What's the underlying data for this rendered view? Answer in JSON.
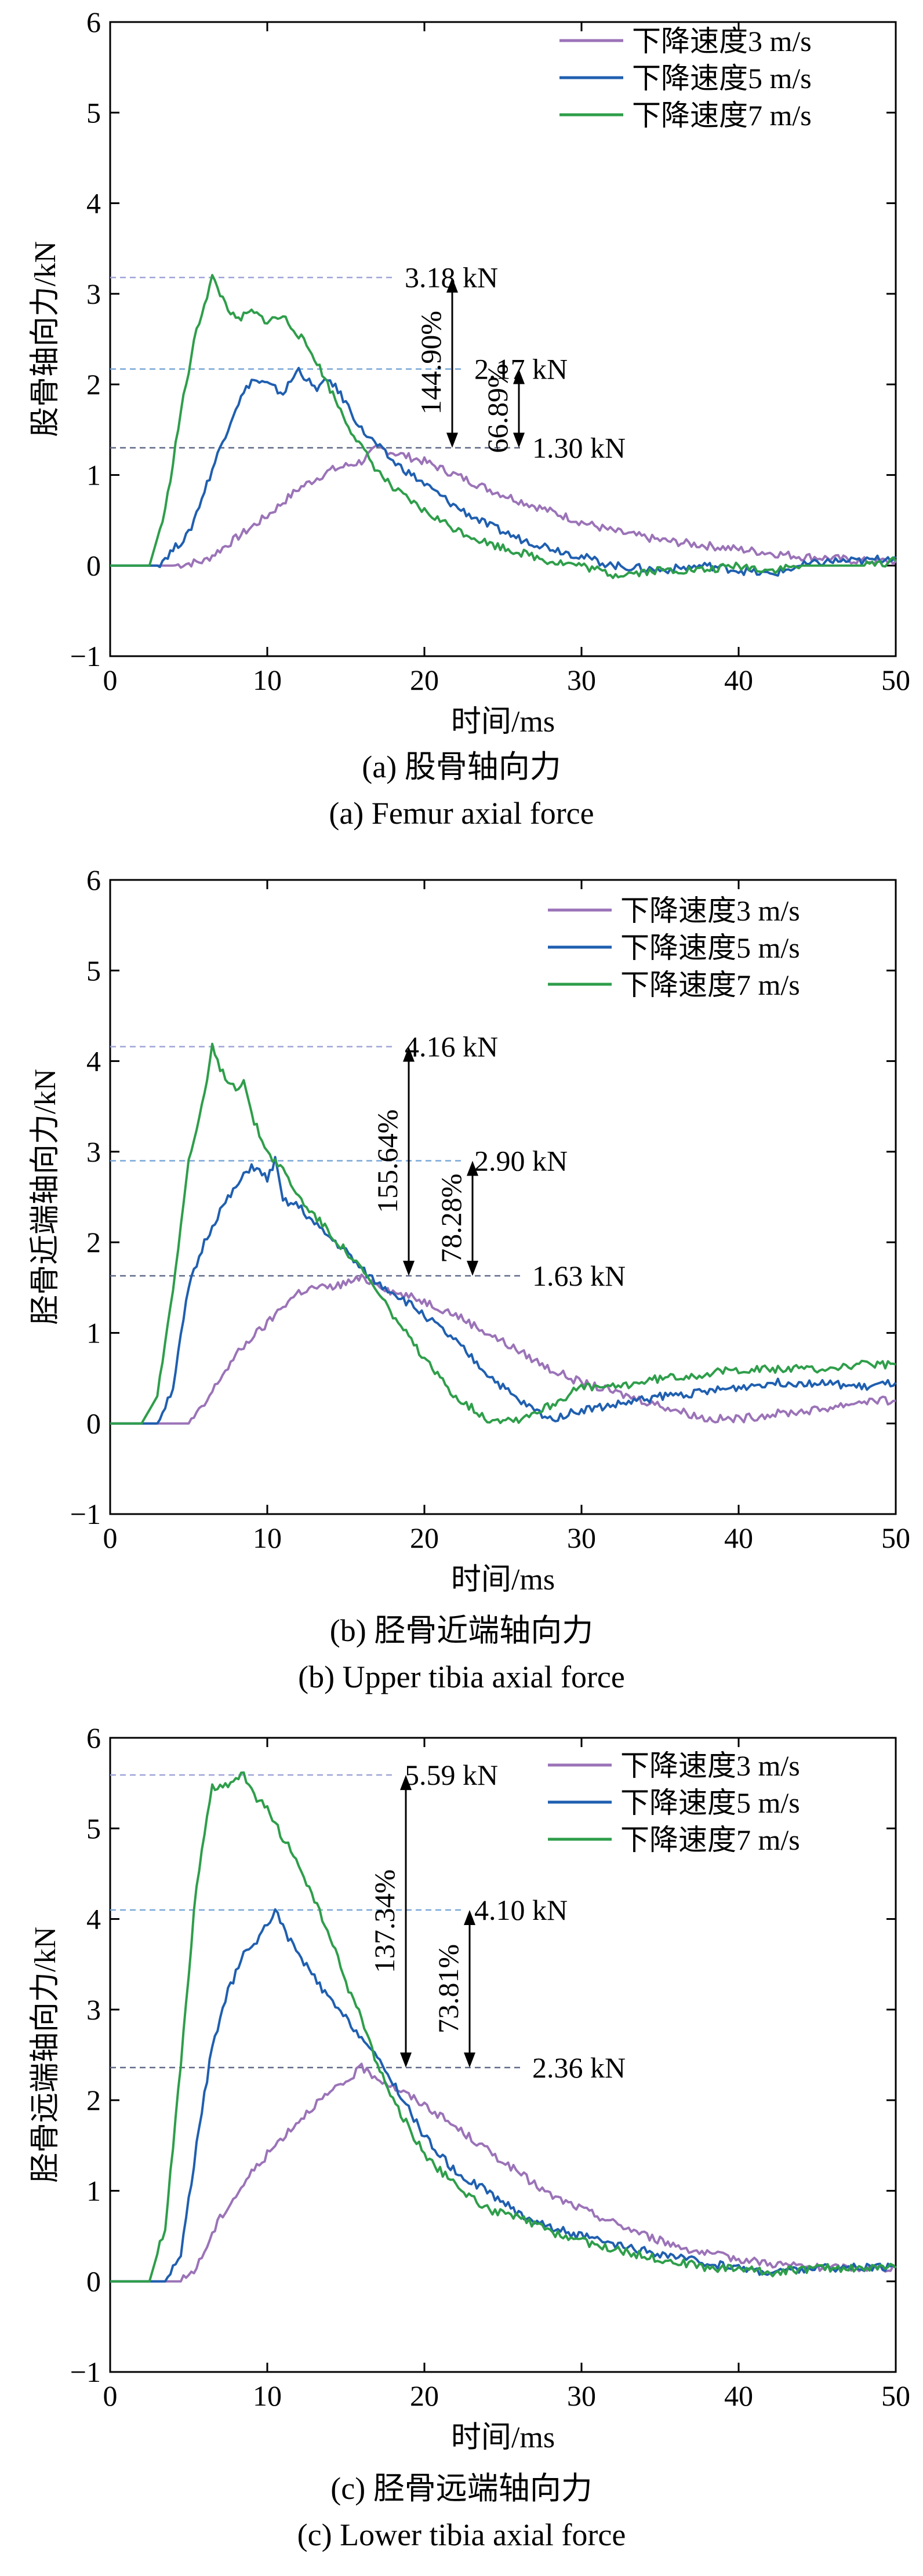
{
  "chart_data": [
    {
      "type": "line",
      "panel_label": "(a)",
      "caption_cn": "(a) 股骨轴向力",
      "caption_en": "(a) Femur axial force",
      "xlabel": "时间/ms",
      "ylabel": "股骨轴向力/kN",
      "xlim": [
        0,
        50
      ],
      "ylim": [
        -1,
        6
      ],
      "xticks": [
        0,
        10,
        20,
        30,
        40,
        50
      ],
      "yticks": [
        -1,
        0,
        1,
        2,
        3,
        4,
        5,
        6
      ],
      "grid": false,
      "legend_position": "top-right",
      "colors": {
        "3": "#9b73b8",
        "5": "#1f5fb0",
        "7": "#2e9e4a"
      },
      "series": [
        {
          "name": "下降速度3 m/s",
          "color": "#9b73b8",
          "x": [
            0,
            4,
            6,
            8,
            10,
            12,
            14,
            16,
            17,
            18,
            20,
            22,
            24,
            26,
            28,
            30,
            32,
            35,
            38,
            40,
            42,
            44,
            46,
            48,
            50
          ],
          "y": [
            0,
            0,
            0.05,
            0.3,
            0.55,
            0.85,
            1.05,
            1.15,
            1.3,
            1.25,
            1.15,
            1.0,
            0.85,
            0.72,
            0.6,
            0.48,
            0.38,
            0.28,
            0.22,
            0.18,
            0.14,
            0.1,
            0.08,
            0.05,
            0.05
          ]
        },
        {
          "name": "下降速度5 m/s",
          "color": "#1f5fb0",
          "x": [
            0,
            3,
            5,
            7,
            8,
            9,
            10,
            11,
            12,
            13,
            14,
            15,
            16,
            18,
            20,
            22,
            24,
            26,
            28,
            30,
            32,
            35,
            38,
            40,
            42,
            44,
            46,
            48,
            50
          ],
          "y": [
            0,
            0,
            0.35,
            1.3,
            1.75,
            2.05,
            2.0,
            1.9,
            2.17,
            1.95,
            2.05,
            1.8,
            1.5,
            1.15,
            0.9,
            0.65,
            0.45,
            0.3,
            0.2,
            0.1,
            0.0,
            -0.05,
            0.0,
            -0.05,
            -0.1,
            0.0,
            0.05,
            0.05,
            0.1
          ]
        },
        {
          "name": "下降速度7 m/s",
          "color": "#2e9e4a",
          "x": [
            0,
            2.5,
            3.5,
            4.5,
            5.5,
            6.5,
            7,
            8,
            9,
            10,
            11,
            12,
            13,
            14,
            15,
            16,
            17,
            18,
            20,
            22,
            24,
            26,
            28,
            30,
            32,
            35,
            38,
            40,
            42,
            44,
            46,
            48,
            50
          ],
          "y": [
            0,
            0,
            0.6,
            1.7,
            2.6,
            3.18,
            3.0,
            2.7,
            2.8,
            2.7,
            2.75,
            2.55,
            2.3,
            1.95,
            1.6,
            1.3,
            1.05,
            0.85,
            0.6,
            0.4,
            0.25,
            0.15,
            0.05,
            0.0,
            -0.1,
            -0.05,
            -0.05,
            0.0,
            -0.05,
            0.0,
            0.0,
            0.0,
            0.05
          ]
        }
      ],
      "reference_lines": [
        {
          "label": "3.18 kN",
          "value": 3.18
        },
        {
          "label": "2.17 kN",
          "value": 2.17
        },
        {
          "label": "1.30 kN",
          "value": 1.3
        }
      ],
      "annotations": [
        {
          "text": "144.90%",
          "from": 1.3,
          "to": 3.18
        },
        {
          "text": "66.89%",
          "from": 1.3,
          "to": 2.17
        }
      ]
    },
    {
      "type": "line",
      "panel_label": "(b)",
      "caption_cn": "(b) 胫骨近端轴向力",
      "caption_en": "(b) Upper tibia axial force",
      "xlabel": "时间/ms",
      "ylabel": "胫骨近端轴向力/kN",
      "xlim": [
        0,
        50
      ],
      "ylim": [
        -1,
        6
      ],
      "xticks": [
        0,
        10,
        20,
        30,
        40,
        50
      ],
      "yticks": [
        -1,
        0,
        1,
        2,
        3,
        4,
        5,
        6
      ],
      "grid": false,
      "legend_position": "top-right",
      "series": [
        {
          "name": "下降速度3 m/s",
          "color": "#9b73b8",
          "x": [
            0,
            5,
            6,
            7,
            8,
            9,
            10,
            11,
            12,
            13,
            14,
            15,
            16,
            17,
            18,
            20,
            22,
            24,
            26,
            28,
            30,
            32,
            35,
            38,
            40,
            42,
            45,
            48,
            50
          ],
          "y": [
            0,
            0,
            0.2,
            0.5,
            0.75,
            0.95,
            1.1,
            1.3,
            1.45,
            1.5,
            1.5,
            1.55,
            1.6,
            1.55,
            1.45,
            1.35,
            1.2,
            1.0,
            0.8,
            0.6,
            0.45,
            0.35,
            0.2,
            0.05,
            0.05,
            0.1,
            0.15,
            0.25,
            0.25
          ]
        },
        {
          "name": "下降速度5 m/s",
          "color": "#1f5fb0",
          "x": [
            0,
            3,
            4,
            5,
            6,
            7,
            8,
            9,
            10,
            10.5,
            11,
            12,
            13,
            14,
            15,
            16,
            17,
            18,
            20,
            22,
            24,
            26,
            28,
            30,
            32,
            35,
            38,
            40,
            42,
            45,
            48,
            50
          ],
          "y": [
            0,
            0,
            0.4,
            1.5,
            2.0,
            2.35,
            2.6,
            2.85,
            2.7,
            2.9,
            2.45,
            2.4,
            2.2,
            2.05,
            1.9,
            1.7,
            1.55,
            1.45,
            1.2,
            0.9,
            0.55,
            0.25,
            0.05,
            0.15,
            0.2,
            0.3,
            0.35,
            0.4,
            0.45,
            0.45,
            0.4,
            0.45
          ]
        },
        {
          "name": "下降速度7 m/s",
          "color": "#2e9e4a",
          "x": [
            0,
            2,
            3,
            4,
            5,
            6,
            6.5,
            7,
            8,
            8.5,
            9,
            10,
            11,
            12,
            13,
            14,
            15,
            16,
            18,
            20,
            22,
            24,
            26,
            28,
            30,
            32,
            35,
            38,
            40,
            42,
            45,
            48,
            50
          ],
          "y": [
            0,
            0,
            0.3,
            1.5,
            2.9,
            3.6,
            4.16,
            3.9,
            3.7,
            3.8,
            3.4,
            3.0,
            2.8,
            2.5,
            2.3,
            2.1,
            1.9,
            1.7,
            1.2,
            0.7,
            0.3,
            0.05,
            0.05,
            0.2,
            0.4,
            0.4,
            0.5,
            0.55,
            0.6,
            0.6,
            0.6,
            0.65,
            0.65
          ]
        }
      ],
      "reference_lines": [
        {
          "label": "4.16 kN",
          "value": 4.16
        },
        {
          "label": "2.90 kN",
          "value": 2.9
        },
        {
          "label": "1.63 kN",
          "value": 1.63
        }
      ],
      "annotations": [
        {
          "text": "155.64%",
          "from": 1.63,
          "to": 4.16
        },
        {
          "text": "78.28%",
          "from": 1.63,
          "to": 2.9
        }
      ]
    },
    {
      "type": "line",
      "panel_label": "(c)",
      "caption_cn": "(c) 胫骨远端轴向力",
      "caption_en": "(c) Lower tibia axial force",
      "xlabel": "时间/ms",
      "ylabel": "胫骨远端轴向力/kN",
      "xlim": [
        0,
        50
      ],
      "ylim": [
        -1,
        6
      ],
      "xticks": [
        0,
        10,
        20,
        30,
        40,
        50
      ],
      "yticks": [
        -1,
        0,
        1,
        2,
        3,
        4,
        5,
        6
      ],
      "grid": false,
      "legend_position": "top-right",
      "series": [
        {
          "name": "下降速度3 m/s",
          "color": "#9b73b8",
          "x": [
            0,
            4.5,
            5.5,
            7,
            9,
            11,
            13,
            15,
            16,
            17,
            18,
            20,
            22,
            24,
            26,
            28,
            30,
            32,
            35,
            38,
            40,
            42,
            45,
            48,
            50
          ],
          "y": [
            0,
            0,
            0.15,
            0.7,
            1.2,
            1.6,
            1.95,
            2.2,
            2.36,
            2.25,
            2.15,
            1.95,
            1.7,
            1.45,
            1.2,
            0.95,
            0.8,
            0.65,
            0.45,
            0.3,
            0.25,
            0.2,
            0.15,
            0.15,
            0.15
          ]
        },
        {
          "name": "下降速度5 m/s",
          "color": "#1f5fb0",
          "x": [
            0,
            3.5,
            4.5,
            5.5,
            6.5,
            7.5,
            8.5,
            9.5,
            10.5,
            11,
            12,
            14,
            16,
            18,
            20,
            22,
            24,
            26,
            28,
            30,
            32,
            35,
            38,
            40,
            42,
            45,
            48,
            50
          ],
          "y": [
            0,
            0,
            0.3,
            1.5,
            2.6,
            3.2,
            3.6,
            3.8,
            4.1,
            3.9,
            3.6,
            3.1,
            2.7,
            2.2,
            1.6,
            1.2,
            1.0,
            0.75,
            0.6,
            0.5,
            0.4,
            0.3,
            0.2,
            0.15,
            0.1,
            0.15,
            0.15,
            0.15
          ]
        },
        {
          "name": "下降速度7 m/s",
          "color": "#2e9e4a",
          "x": [
            0,
            2.5,
            3.5,
            4.5,
            5.5,
            6.5,
            7.5,
            8.5,
            9,
            10,
            11,
            12,
            13,
            14,
            15,
            16,
            17,
            18,
            20,
            22,
            24,
            26,
            28,
            30,
            32,
            35,
            38,
            40,
            42,
            45,
            48,
            50
          ],
          "y": [
            0,
            0,
            0.6,
            2.4,
            4.4,
            5.45,
            5.5,
            5.59,
            5.4,
            5.2,
            4.9,
            4.6,
            4.2,
            3.8,
            3.3,
            2.9,
            2.4,
            2.0,
            1.4,
            1.05,
            0.8,
            0.7,
            0.55,
            0.45,
            0.35,
            0.25,
            0.15,
            0.15,
            0.1,
            0.15,
            0.15,
            0.15
          ]
        }
      ],
      "reference_lines": [
        {
          "label": "5.59 kN",
          "value": 5.59
        },
        {
          "label": "4.10 kN",
          "value": 4.1
        },
        {
          "label": "2.36 kN",
          "value": 2.36
        }
      ],
      "annotations": [
        {
          "text": "137.34%",
          "from": 2.36,
          "to": 5.59
        },
        {
          "text": "73.81%",
          "from": 2.36,
          "to": 4.1
        }
      ]
    }
  ]
}
